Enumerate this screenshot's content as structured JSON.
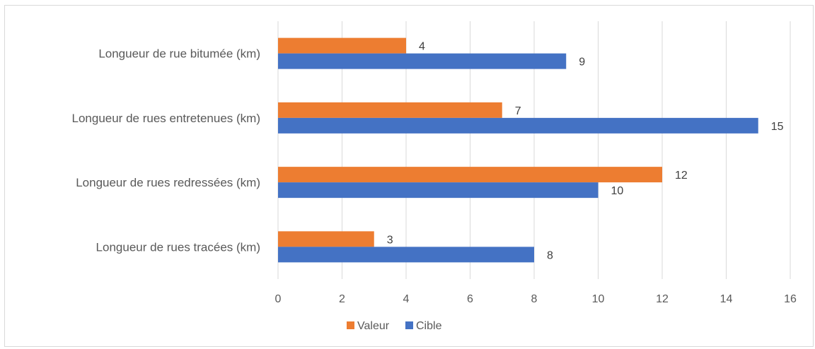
{
  "chart_data": {
    "type": "bar",
    "orientation": "horizontal",
    "categories": [
      "Longueur de rues tracées (km)",
      "Longueur de rues redressées (km)",
      "Longueur de rues entretenues (km)",
      "Longueur de rue bitumée (km)"
    ],
    "series": [
      {
        "name": "Valeur",
        "color": "#ed7d31",
        "values": [
          3,
          12,
          7,
          4
        ]
      },
      {
        "name": "Cible",
        "color": "#4472c4",
        "values": [
          8,
          10,
          15,
          9
        ]
      }
    ],
    "xlim": [
      0,
      16
    ],
    "xticks": [
      0,
      2,
      4,
      6,
      8,
      10,
      12,
      14,
      16
    ],
    "grid": true,
    "legend": "bottom",
    "data_labels": true
  }
}
